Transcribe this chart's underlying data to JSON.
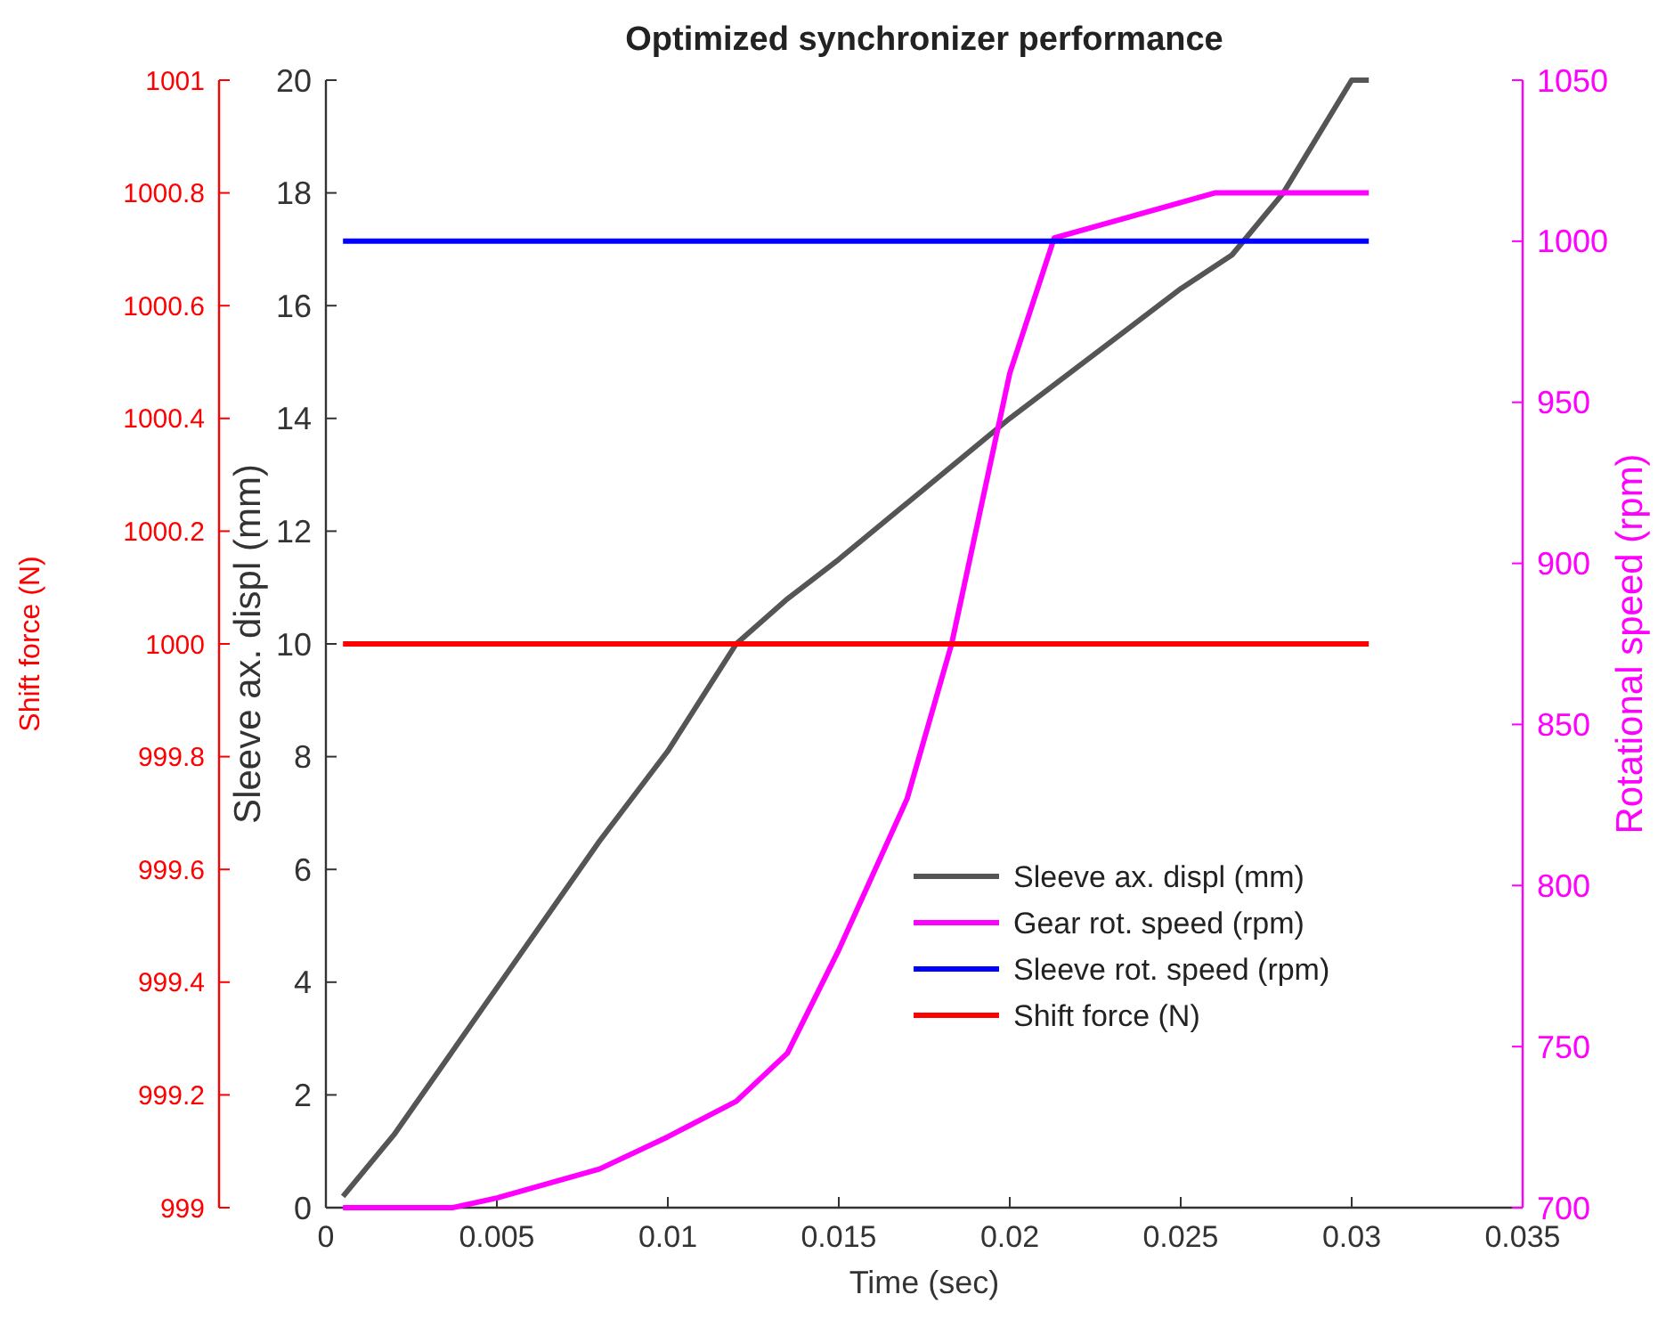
{
  "chart_data": {
    "type": "line",
    "title": "Optimized synchronizer performance",
    "xlabel": "Time (sec)",
    "ylabel": "Sleeve ax. displ (mm)",
    "y2label": "Rotational  speed  (rpm)",
    "y3label": "Shift force (N)",
    "xlim": [
      0,
      0.035
    ],
    "xticks": [
      0,
      0.005,
      0.01,
      0.015,
      0.02,
      0.025,
      0.03,
      0.035
    ],
    "ylim": [
      0,
      20
    ],
    "yticks": [
      0,
      2,
      4,
      6,
      8,
      10,
      12,
      14,
      16,
      18,
      20
    ],
    "y2lim": [
      700,
      1050
    ],
    "y2ticks": [
      700,
      750,
      800,
      850,
      900,
      950,
      1000,
      1050
    ],
    "y3lim": [
      999,
      1001
    ],
    "y3ticks": [
      999,
      999.2,
      999.4,
      999.6,
      999.8,
      1000,
      1000.2,
      1000.4,
      1000.6,
      1000.8,
      1001
    ],
    "legend": "bottom right",
    "grid": false,
    "line_style": "solid",
    "series": [
      {
        "name": "Sleeve ax. displ (mm)",
        "color": "#555555",
        "x": [
          0.0005,
          0.002,
          0.005,
          0.008,
          0.01,
          0.012,
          0.0135,
          0.015,
          0.02,
          0.025,
          0.0265,
          0.028,
          0.03,
          0.0305
        ],
        "values": [
          0.2,
          1.3,
          3.9,
          6.5,
          8.1,
          10,
          10.8,
          11.5,
          14,
          16.3,
          16.9,
          18,
          20,
          20
        ]
      },
      {
        "name": "Gear rot. speed (rpm)",
        "color": "#ff00ff",
        "axis": "y2",
        "x": [
          0.0005,
          0.0037,
          0.005,
          0.008,
          0.01,
          0.012,
          0.0135,
          0.015,
          0.017,
          0.0183,
          0.02,
          0.0213,
          0.026,
          0.0305
        ],
        "values": [
          700,
          700,
          703,
          712,
          722,
          733,
          748,
          780,
          827,
          875,
          959,
          1001,
          1015,
          1015
        ]
      },
      {
        "name": "Sleeve rot. speed (rpm)",
        "color": "#0000ff",
        "axis": "y2",
        "x": [
          0.0005,
          0.0305
        ],
        "values": [
          1000,
          1000
        ]
      },
      {
        "name": "Shift force (N)",
        "color": "#ff0000",
        "axis": "y3",
        "x": [
          0.0005,
          0.0305
        ],
        "values": [
          1000,
          1000
        ]
      }
    ]
  }
}
